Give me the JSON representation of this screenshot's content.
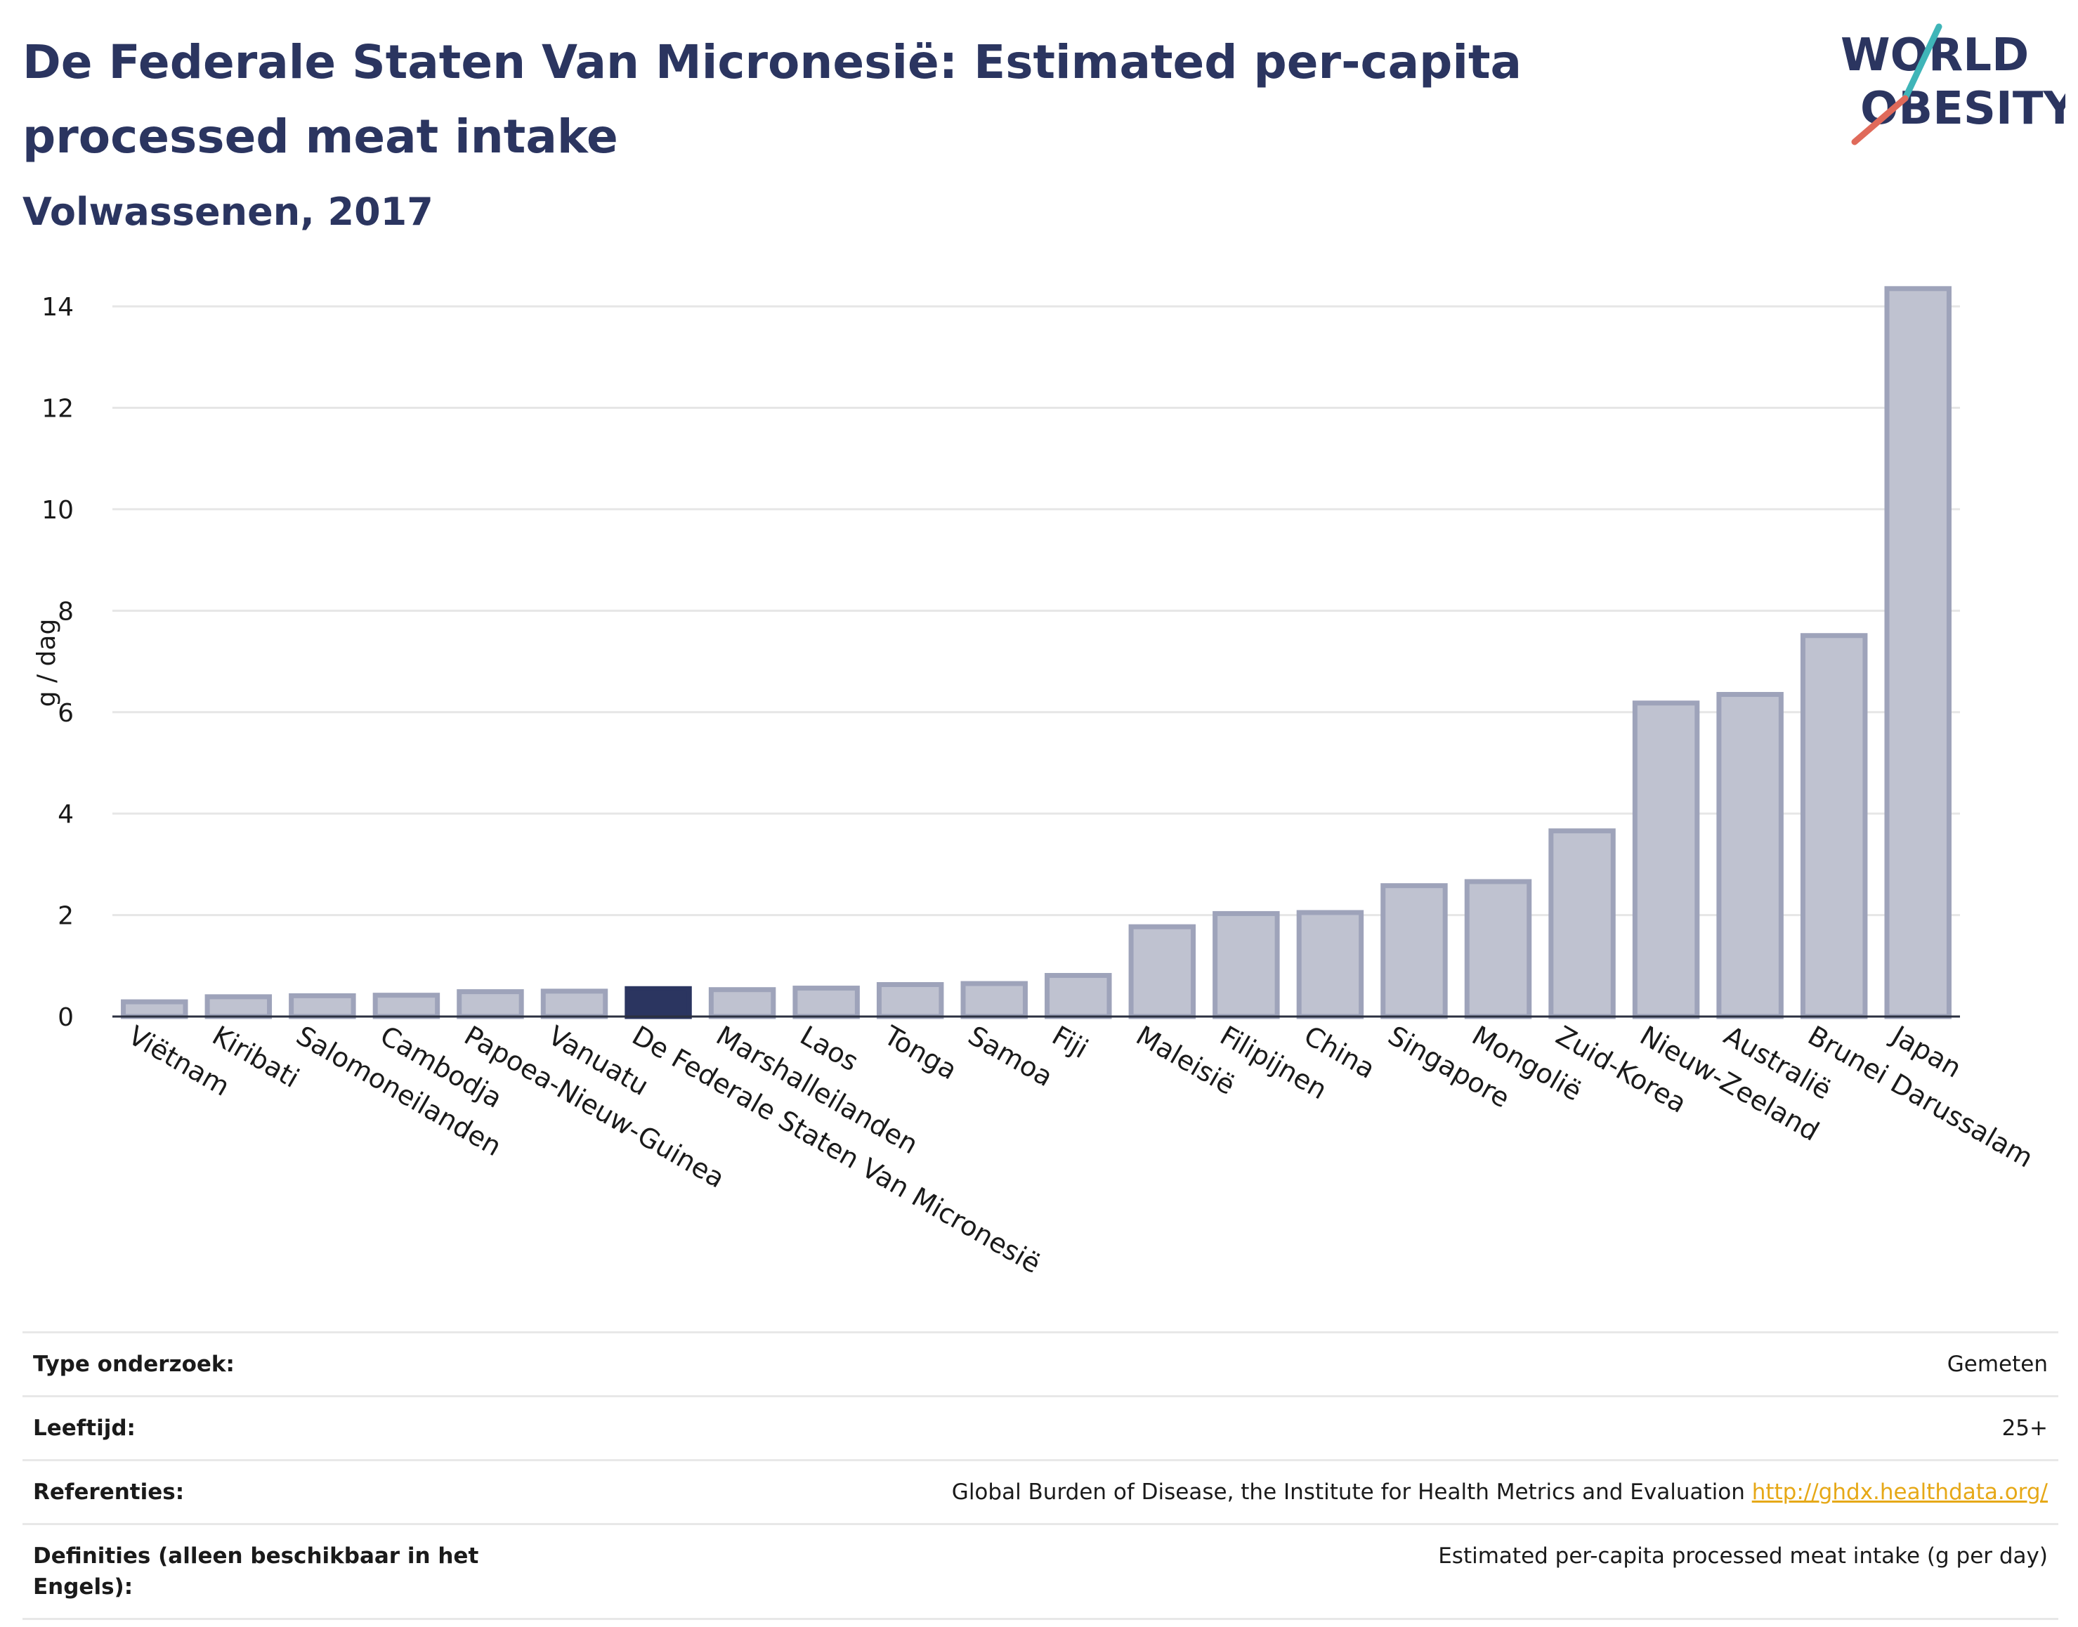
{
  "header": {
    "title": "De Federale Staten Van Micronesië: Estimated per-capita processed meat intake",
    "subtitle": "Volwassenen, 2017"
  },
  "logo": {
    "line1": "WORLD",
    "line2": "OBESITY"
  },
  "chart_data": {
    "type": "bar",
    "ylabel": "g / dag",
    "xlabel": "",
    "ylim": [
      0,
      14.5
    ],
    "yticks": [
      0,
      2,
      4,
      6,
      8,
      10,
      12,
      14
    ],
    "grid": true,
    "highlight": "De Federale Staten Van Micronesië",
    "colors": {
      "bar": "#bfc2d0",
      "bar_border": "#9ea3ba",
      "highlight": "#2b3560"
    },
    "categories": [
      "Viëtnam",
      "Kiribati",
      "Salomoneilanden",
      "Cambodja",
      "Papoea-Nieuw-Guinea",
      "Vanuatu",
      "De Federale Staten Van Micronesië",
      "Marshalleilanden",
      "Laos",
      "Tonga",
      "Samoa",
      "Fiji",
      "Maleisië",
      "Filipijnen",
      "China",
      "Singapore",
      "Mongolië",
      "Zuid-Korea",
      "Nieuw-Zeeland",
      "Australië",
      "Brunei Darussalam",
      "Japan"
    ],
    "values": [
      0.29,
      0.39,
      0.41,
      0.42,
      0.49,
      0.5,
      0.55,
      0.53,
      0.56,
      0.63,
      0.65,
      0.81,
      1.77,
      2.03,
      2.05,
      2.58,
      2.66,
      3.66,
      6.18,
      6.35,
      7.51,
      14.35
    ]
  },
  "meta": [
    {
      "label": "Type onderzoek:",
      "value": "Gemeten"
    },
    {
      "label": "Leeftijd:",
      "value": "25+"
    },
    {
      "label": "Referenties:",
      "value": "Global Burden of Disease, the Institute for Health Metrics and Evaluation",
      "link": "http://ghdx.healthdata.org/"
    },
    {
      "label": "Definities (alleen beschikbaar in het Engels):",
      "value": "Estimated per-capita processed meat intake (g per day)"
    }
  ]
}
